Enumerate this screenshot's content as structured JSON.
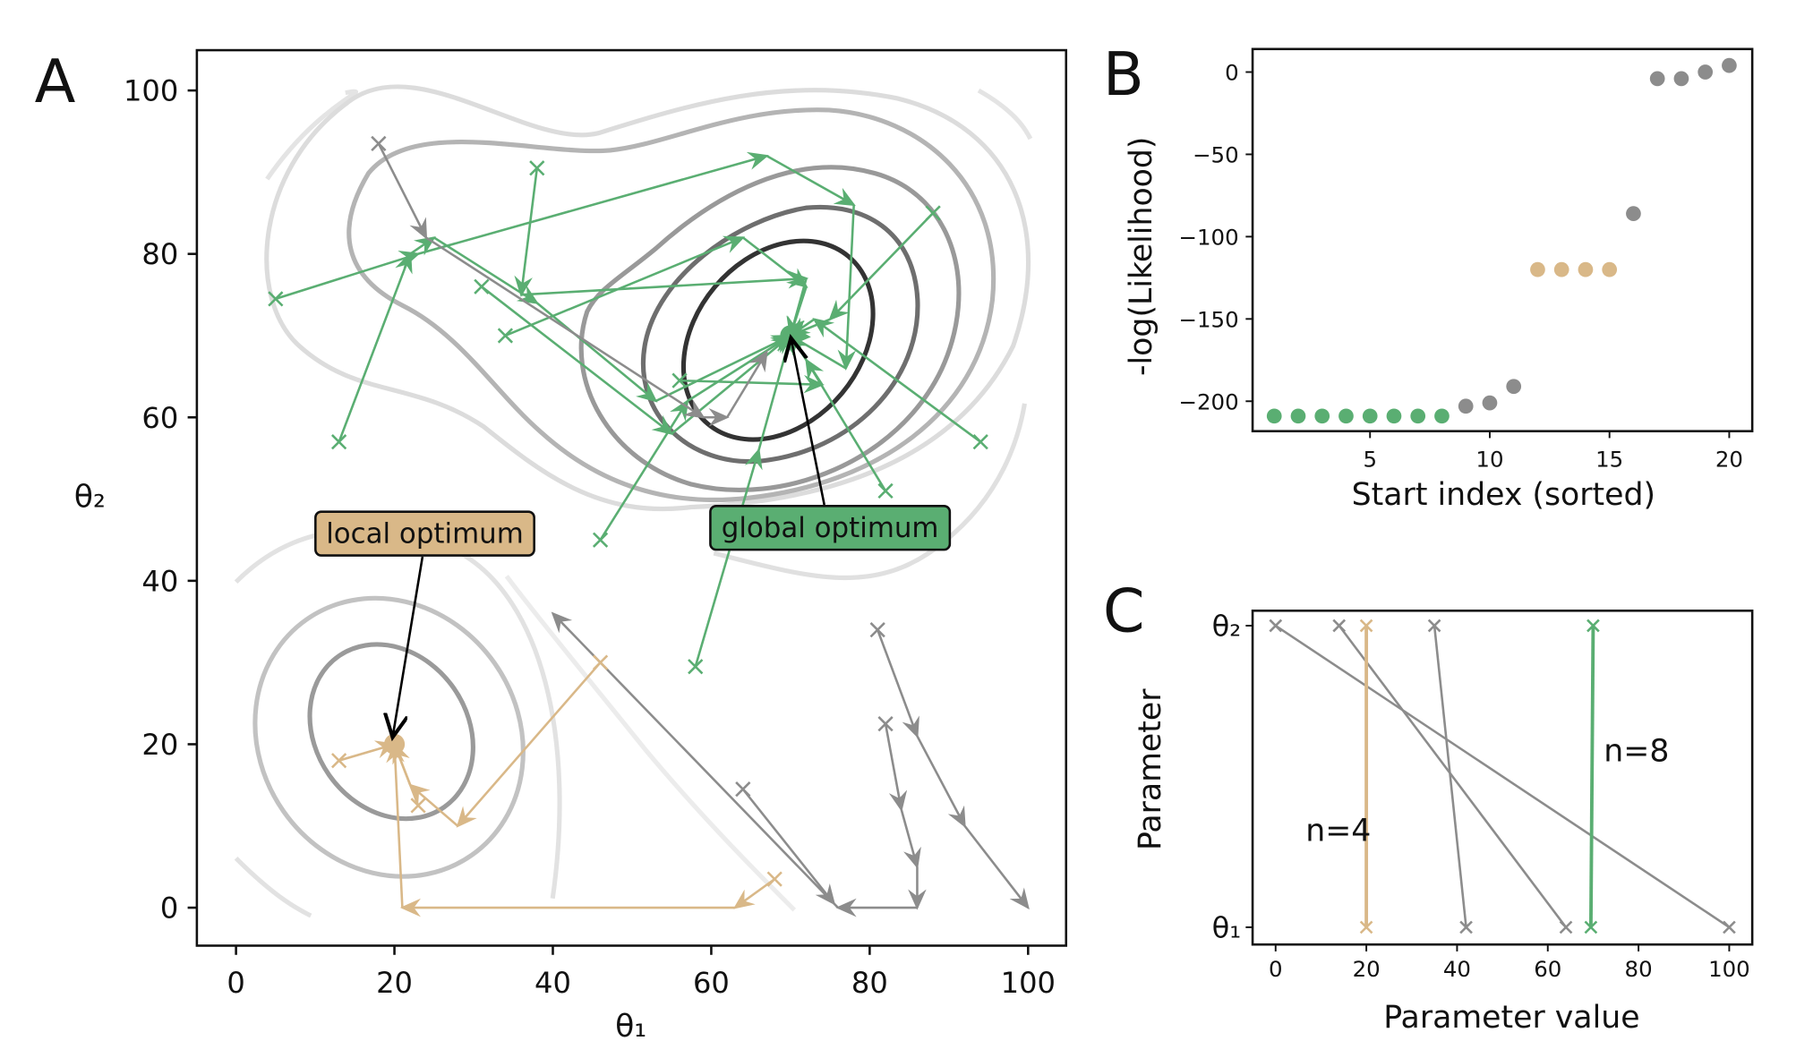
{
  "colors": {
    "global": "#5aae72",
    "local": "#d9b888",
    "other": "#8c8c8c"
  },
  "chart_data": [
    {
      "panel": "A",
      "type": "line",
      "xlabel": "θ₁",
      "ylabel": "θ₂",
      "xlim": [
        -5,
        105
      ],
      "ylim": [
        -5,
        105
      ],
      "xticks": [
        "0",
        "20",
        "40",
        "60",
        "80",
        "100"
      ],
      "yticks": [
        "0",
        "20",
        "40",
        "60",
        "80",
        "100"
      ],
      "annotations": [
        {
          "text": "local optimum",
          "target": [
            20,
            20
          ]
        },
        {
          "text": "global optimum",
          "target": [
            70,
            70
          ]
        }
      ],
      "optima": {
        "global": [
          70,
          70
        ],
        "local": [
          20,
          20
        ]
      },
      "trajectories": [
        {
          "group": "global",
          "points": [
            [
              5,
              74.5
            ],
            [
              23,
              80
            ],
            [
              67,
              92
            ],
            [
              78,
              86
            ],
            [
              77,
              66
            ],
            [
              70,
              70
            ]
          ]
        },
        {
          "group": "global",
          "points": [
            [
              13,
              57
            ],
            [
              22,
              80
            ],
            [
              25,
              82
            ],
            [
              38,
              74
            ],
            [
              53,
              62
            ],
            [
              70,
              70
            ]
          ]
        },
        {
          "group": "global",
          "points": [
            [
              38,
              90.5
            ],
            [
              36,
              75
            ],
            [
              72,
              77
            ],
            [
              70,
              70
            ]
          ]
        },
        {
          "group": "global",
          "points": [
            [
              31,
              76
            ],
            [
              55,
              58
            ],
            [
              70,
              70
            ]
          ]
        },
        {
          "group": "global",
          "points": [
            [
              34,
              70
            ],
            [
              64,
              82
            ],
            [
              72,
              76
            ],
            [
              70,
              70
            ]
          ]
        },
        {
          "group": "global",
          "points": [
            [
              88,
              85
            ],
            [
              75,
              72
            ],
            [
              70,
              70
            ]
          ]
        },
        {
          "group": "global",
          "points": [
            [
              94,
              57
            ],
            [
              73,
              72
            ],
            [
              70,
              70
            ]
          ]
        },
        {
          "group": "global",
          "points": [
            [
              46,
              45
            ],
            [
              57,
              62
            ],
            [
              70,
              70
            ]
          ]
        },
        {
          "group": "global",
          "points": [
            [
              58,
              29.5
            ],
            [
              66,
              56
            ],
            [
              70,
              70
            ]
          ]
        },
        {
          "group": "global",
          "points": [
            [
              82,
              51
            ],
            [
              72,
              67
            ]
          ]
        },
        {
          "group": "global",
          "points": [
            [
              56,
              64.5
            ],
            [
              74,
              64
            ],
            [
              70,
              70
            ]
          ]
        },
        {
          "group": "other",
          "points": [
            [
              18,
              93.5
            ],
            [
              24,
              82
            ],
            [
              59,
              60
            ],
            [
              62,
              60
            ],
            [
              67,
              68
            ]
          ]
        },
        {
          "group": "other",
          "points": [
            [
              82,
              22.5
            ],
            [
              84,
              12
            ],
            [
              86,
              5
            ],
            [
              86,
              0
            ],
            [
              76,
              0
            ],
            [
              40,
              36
            ]
          ]
        },
        {
          "group": "other",
          "points": [
            [
              64,
              14.5
            ],
            [
              75.5,
              0.5
            ]
          ]
        },
        {
          "group": "other",
          "points": [
            [
              81,
              34
            ],
            [
              86,
              21
            ],
            [
              92,
              10
            ],
            [
              100,
              0
            ]
          ]
        },
        {
          "group": "local",
          "points": [
            [
              13,
              18
            ],
            [
              20,
              20
            ]
          ]
        },
        {
          "group": "local",
          "points": [
            [
              23,
              12.5
            ],
            [
              20,
              20
            ]
          ]
        },
        {
          "group": "local",
          "points": [
            [
              46,
              30
            ],
            [
              28,
              10
            ],
            [
              22,
              15
            ],
            [
              20,
              20
            ]
          ]
        },
        {
          "group": "local",
          "points": [
            [
              68,
              3.5
            ],
            [
              63,
              0
            ],
            [
              21,
              0
            ],
            [
              20,
              20
            ]
          ]
        }
      ]
    },
    {
      "panel": "B",
      "type": "scatter",
      "xlabel": "Start index (sorted)",
      "ylabel": "-log(Likelihood)",
      "xlim": [
        0,
        21
      ],
      "ylim": [
        -218,
        15
      ],
      "xticks": [
        "5",
        "10",
        "15",
        "20"
      ],
      "yticks": [
        "0",
        "−50",
        "−100",
        "−150",
        "−200"
      ],
      "x": [
        1,
        2,
        3,
        4,
        5,
        6,
        7,
        8,
        9,
        10,
        11,
        12,
        13,
        14,
        15,
        16,
        17,
        18,
        19,
        20
      ],
      "y": [
        -209,
        -209,
        -209,
        -209,
        -209,
        -209,
        -209,
        -209,
        -203,
        -201,
        -191,
        -120,
        -120,
        -120,
        -120,
        -86,
        -4,
        -4,
        0,
        4
      ],
      "groups": [
        "global",
        "global",
        "global",
        "global",
        "global",
        "global",
        "global",
        "global",
        "other",
        "other",
        "other",
        "local",
        "local",
        "local",
        "local",
        "other",
        "other",
        "other",
        "other",
        "other"
      ]
    },
    {
      "panel": "C",
      "type": "line",
      "xlabel": "Parameter value",
      "ylabel": "Parameter",
      "xlim": [
        -3,
        105
      ],
      "xticks": [
        "0",
        "20",
        "40",
        "60",
        "80",
        "100"
      ],
      "yticks": [
        "θ₁",
        "θ₂"
      ],
      "series": [
        {
          "group": "other",
          "theta1": 100,
          "theta2": 0
        },
        {
          "group": "other",
          "theta1": 64,
          "theta2": 14
        },
        {
          "group": "other",
          "theta1": 42,
          "theta2": 35
        },
        {
          "group": "local",
          "theta1": 20,
          "theta2": 20
        },
        {
          "group": "global",
          "theta1": 69.5,
          "theta2": 70
        }
      ],
      "labels": [
        {
          "text": "n=4",
          "group": "local"
        },
        {
          "text": "n=8",
          "group": "global"
        }
      ]
    }
  ],
  "panel_letters": [
    "A",
    "B",
    "C"
  ]
}
